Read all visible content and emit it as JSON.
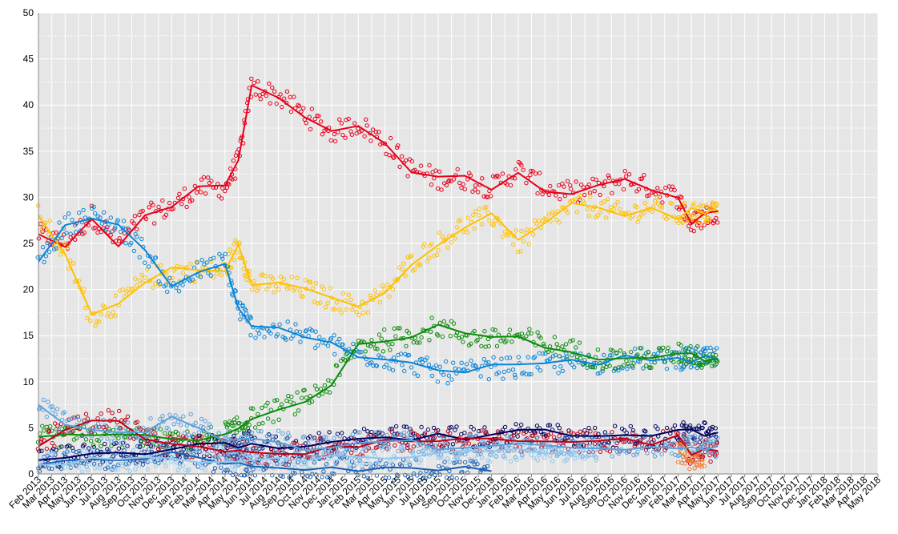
{
  "chart_data": {
    "type": "scatter",
    "title": "",
    "xlabel": "",
    "ylabel": "",
    "ylim": [
      0,
      50
    ],
    "xlim": [
      "2013-02",
      "2018-05"
    ],
    "grid": true,
    "legend": "none",
    "y_ticks": [
      "0",
      "5",
      "10",
      "15",
      "20",
      "25",
      "30",
      "35",
      "40",
      "45",
      "50"
    ],
    "x_ticks": [
      "Feb 2013",
      "Mar 2013",
      "Apr 2013",
      "May 2013",
      "Jun 2013",
      "Jul 2013",
      "Aug 2013",
      "Sep 2013",
      "Oct 2013",
      "Nov 2013",
      "Dec 2013",
      "Jan 2014",
      "Feb 2014",
      "Mar 2014",
      "Apr 2014",
      "May 2014",
      "Jun 2014",
      "Jul 2014",
      "Aug 2014",
      "Sep 2014",
      "Oct 2014",
      "Nov 2014",
      "Dec 2014",
      "Jan 2015",
      "Feb 2015",
      "Mar 2015",
      "Apr 2015",
      "May 2015",
      "Jun 2015",
      "Jul 2015",
      "Aug 2015",
      "Sep 2015",
      "Oct 2015",
      "Nov 2015",
      "Dec 2015",
      "Jan 2016",
      "Feb 2016",
      "Mar 2016",
      "Apr 2016",
      "May 2016",
      "Jun 2016",
      "Jul 2016",
      "Aug 2016",
      "Sep 2016",
      "Oct 2016",
      "Nov 2016",
      "Dec 2016",
      "Jan 2017",
      "Feb 2017",
      "Mar 2017",
      "Apr 2017",
      "May 2017",
      "Jun 2017",
      "Jul 2017",
      "Aug 2017",
      "Sep 2017",
      "Oct 2017",
      "Nov 2017",
      "Dec 2017",
      "Jan 2018",
      "Feb 2018",
      "Mar 2018",
      "Apr 2018",
      "May 2018"
    ],
    "series": [
      {
        "color": "#e8001c",
        "x": [
          "2013-02",
          "2013-04",
          "2013-06",
          "2013-08",
          "2013-10",
          "2013-12",
          "2014-02",
          "2014-04",
          "2014-05",
          "2014-06",
          "2014-08",
          "2014-10",
          "2014-12",
          "2015-02",
          "2015-04",
          "2015-06",
          "2015-08",
          "2015-10",
          "2015-12",
          "2016-02",
          "2016-04",
          "2016-06",
          "2016-08",
          "2016-10",
          "2016-12",
          "2017-02",
          "2017-03",
          "2017-04",
          "2017-05"
        ],
        "y": [
          26,
          25,
          28,
          25,
          28,
          29,
          31,
          31,
          34,
          42,
          41,
          39,
          37,
          38,
          36,
          33,
          32,
          32,
          31,
          33,
          31,
          30.5,
          31,
          32,
          31,
          30,
          27,
          28,
          28.5
        ]
      },
      {
        "color": "#ffc000",
        "x": [
          "2013-02",
          "2013-04",
          "2013-06",
          "2013-08",
          "2013-10",
          "2013-12",
          "2014-02",
          "2014-04",
          "2014-05",
          "2014-06",
          "2014-08",
          "2014-10",
          "2014-12",
          "2015-02",
          "2015-04",
          "2015-06",
          "2015-08",
          "2015-10",
          "2015-12",
          "2016-02",
          "2016-04",
          "2016-06",
          "2016-08",
          "2016-10",
          "2016-12",
          "2017-02",
          "2017-03",
          "2017-04",
          "2017-05"
        ],
        "y": [
          28,
          24,
          17,
          18.5,
          21,
          22,
          22,
          22,
          25,
          20.5,
          20.5,
          20,
          19,
          18,
          19.5,
          23,
          25,
          27,
          28,
          25,
          27,
          29,
          29,
          28,
          29,
          28,
          28.5,
          28,
          29
        ]
      },
      {
        "color": "#0a84d6",
        "x": [
          "2013-02",
          "2013-04",
          "2013-06",
          "2013-08",
          "2013-10",
          "2013-12",
          "2014-02",
          "2014-04",
          "2014-05",
          "2014-06",
          "2014-08",
          "2014-10",
          "2014-12",
          "2015-02",
          "2015-04",
          "2015-06",
          "2015-08",
          "2015-10",
          "2015-12",
          "2016-02",
          "2016-04",
          "2016-06",
          "2016-08",
          "2016-10",
          "2016-12",
          "2017-02",
          "2017-03",
          "2017-04",
          "2017-05"
        ],
        "y": [
          23,
          27,
          28,
          27,
          24,
          20,
          22,
          23,
          18,
          16,
          15.5,
          15,
          14,
          13,
          12.5,
          12,
          11,
          11,
          11.5,
          11.5,
          12,
          12,
          12,
          12.5,
          12.5,
          12.5,
          12.5,
          12.5,
          12.5
        ]
      },
      {
        "color": "#0a8c0a",
        "x": [
          "2013-02",
          "2013-04",
          "2013-06",
          "2013-08",
          "2013-10",
          "2013-12",
          "2014-02",
          "2014-04",
          "2014-05",
          "2014-06",
          "2014-08",
          "2014-10",
          "2014-12",
          "2015-02",
          "2015-04",
          "2015-06",
          "2015-08",
          "2015-10",
          "2015-12",
          "2016-02",
          "2016-04",
          "2016-06",
          "2016-08",
          "2016-10",
          "2016-12",
          "2017-02",
          "2017-03",
          "2017-04",
          "2017-05"
        ],
        "y": [
          4,
          4,
          4,
          4,
          4,
          3.5,
          3.5,
          4.5,
          5,
          6,
          7,
          8,
          10,
          14,
          14.5,
          15,
          16,
          15,
          14.5,
          15,
          14,
          13.5,
          12.5,
          12.5,
          12.5,
          13,
          13,
          12.5,
          12.5
        ]
      },
      {
        "color": "#000060",
        "x": [
          "2013-02",
          "2013-04",
          "2013-06",
          "2013-08",
          "2013-10",
          "2013-12",
          "2014-02",
          "2014-04",
          "2014-05",
          "2014-06",
          "2014-08",
          "2014-10",
          "2014-12",
          "2015-02",
          "2015-04",
          "2015-06",
          "2015-08",
          "2015-10",
          "2015-12",
          "2016-02",
          "2016-04",
          "2016-06",
          "2016-08",
          "2016-10",
          "2016-12",
          "2017-02",
          "2017-03",
          "2017-04",
          "2017-05"
        ],
        "y": [
          1.5,
          2,
          2,
          2.5,
          2.5,
          2.5,
          3,
          3,
          3,
          3.5,
          3,
          3,
          3.5,
          4,
          4,
          4,
          4,
          4,
          4,
          4.5,
          4.5,
          4,
          4,
          4,
          4,
          4.5,
          4.5,
          4.5,
          4.5
        ]
      },
      {
        "color": "#c00018",
        "x": [
          "2013-02",
          "2013-04",
          "2013-06",
          "2013-08",
          "2013-10",
          "2013-12",
          "2014-02",
          "2014-04",
          "2014-05",
          "2014-06",
          "2014-08",
          "2014-10",
          "2014-12",
          "2015-02",
          "2015-04",
          "2015-06",
          "2015-08",
          "2015-10",
          "2015-12",
          "2016-02",
          "2016-04",
          "2016-06",
          "2016-08",
          "2016-10",
          "2016-12",
          "2017-02",
          "2017-03",
          "2017-04",
          "2017-05"
        ],
        "y": [
          3,
          5,
          5.5,
          6,
          4,
          3,
          3,
          2.5,
          2.5,
          2,
          2,
          2.5,
          3,
          3,
          3.5,
          3.5,
          3.5,
          3.5,
          3.5,
          3.5,
          3.5,
          3.5,
          3.5,
          3.5,
          3.5,
          4,
          2,
          2.5,
          2.5
        ]
      },
      {
        "color": "#5aa0dc",
        "x": [
          "2013-02",
          "2013-04",
          "2013-06",
          "2013-08",
          "2013-10",
          "2013-12",
          "2014-02",
          "2014-04",
          "2014-05",
          "2014-06",
          "2014-08",
          "2014-10",
          "2014-12",
          "2015-02",
          "2015-04",
          "2015-06",
          "2015-08",
          "2015-10",
          "2015-12",
          "2016-02",
          "2016-04",
          "2016-06",
          "2016-08",
          "2016-10",
          "2016-12",
          "2017-02",
          "2017-03",
          "2017-04",
          "2017-05"
        ],
        "y": [
          7.5,
          5.5,
          5,
          4.5,
          4.5,
          6,
          5,
          3.5,
          3.5,
          3.5,
          3.5,
          3,
          3,
          3.5,
          3.5,
          3.5,
          3,
          3,
          3,
          3,
          3,
          3,
          3,
          3,
          3,
          3,
          3,
          3,
          3
        ]
      },
      {
        "color": "#1a5fb4",
        "x": [
          "2013-02",
          "2013-04",
          "2013-06",
          "2013-08",
          "2013-10",
          "2013-12",
          "2014-02",
          "2014-04",
          "2014-05",
          "2014-06",
          "2014-08",
          "2014-10",
          "2014-12",
          "2015-02",
          "2015-04",
          "2015-06",
          "2015-08",
          "2015-10",
          "2015-12"
        ],
        "y": [
          1,
          1.5,
          1.5,
          1.5,
          2,
          2,
          1.5,
          1,
          1,
          1,
          0.8,
          0.8,
          0.8,
          0.6,
          0.5,
          0.5,
          0.5,
          0.4,
          0.3
        ]
      },
      {
        "color": "#8ec8f0",
        "x": [
          "2013-02",
          "2013-04",
          "2013-06",
          "2013-08",
          "2013-10",
          "2013-12",
          "2014-02",
          "2014-04",
          "2014-05",
          "2014-06",
          "2014-08",
          "2014-10",
          "2014-12",
          "2015-02",
          "2015-04",
          "2015-06",
          "2015-08",
          "2015-10",
          "2015-12",
          "2016-02",
          "2016-04",
          "2016-06",
          "2016-08"
        ],
        "y": [
          1,
          1.2,
          1.5,
          1.5,
          1.5,
          1.5,
          1.5,
          1.5,
          1.5,
          1.5,
          1.5,
          1.5,
          1.8,
          2,
          2,
          2.2,
          2.5,
          2.5,
          2.5,
          2.5,
          2.5,
          2.5,
          2.5
        ]
      },
      {
        "color": "#f47c30",
        "x": [
          "2017-02",
          "2017-03",
          "2017-04"
        ],
        "y": [
          2.5,
          1.5,
          1.5
        ]
      }
    ]
  }
}
